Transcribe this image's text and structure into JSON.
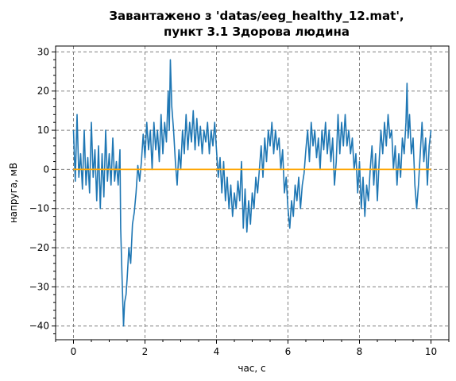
{
  "chart_data": {
    "type": "line",
    "title": [
      "Завантажено з 'datas/eeg_healthy_12.mat',",
      "пункт 3.1 Здорова людина"
    ],
    "xlabel": "час, с",
    "ylabel": "напруга, мВ",
    "xlim": [
      -0.5,
      10.5
    ],
    "ylim": [
      -43.5,
      31.5
    ],
    "xticks": [
      0,
      2,
      4,
      6,
      8,
      10
    ],
    "yticks": [
      30,
      20,
      10,
      0,
      -10,
      -20,
      -30,
      -40
    ],
    "xtick_labels": [
      "0",
      "2",
      "4",
      "6",
      "8",
      "10"
    ],
    "ytick_labels": [
      "30",
      "20",
      "10",
      "0",
      "−10",
      "−20",
      "−30",
      "−40"
    ],
    "grid": true,
    "colors": {
      "signal": "#1f77b4",
      "mean": "#ffa500",
      "grid": "#808080"
    },
    "series": [
      {
        "values": [
          [
            0.0,
            10
          ],
          [
            0.05,
            -3
          ],
          [
            0.1,
            14
          ],
          [
            0.15,
            -2
          ],
          [
            0.2,
            4
          ],
          [
            0.25,
            -5
          ],
          [
            0.3,
            10
          ],
          [
            0.35,
            -4
          ],
          [
            0.4,
            3
          ],
          [
            0.45,
            -6
          ],
          [
            0.5,
            12
          ],
          [
            0.55,
            -2
          ],
          [
            0.6,
            5
          ],
          [
            0.65,
            -8
          ],
          [
            0.7,
            6
          ],
          [
            0.75,
            -10
          ],
          [
            0.8,
            4
          ],
          [
            0.85,
            -7
          ],
          [
            0.9,
            10
          ],
          [
            0.95,
            -3
          ],
          [
            1.0,
            4
          ],
          [
            1.05,
            -4
          ],
          [
            1.1,
            8
          ],
          [
            1.15,
            -3
          ],
          [
            1.2,
            2
          ],
          [
            1.25,
            -4
          ],
          [
            1.3,
            5
          ],
          [
            1.32,
            -15
          ],
          [
            1.36,
            -28
          ],
          [
            1.4,
            -40
          ],
          [
            1.43,
            -34
          ],
          [
            1.47,
            -32
          ],
          [
            1.5,
            -28
          ],
          [
            1.55,
            -20
          ],
          [
            1.6,
            -24
          ],
          [
            1.65,
            -14
          ],
          [
            1.7,
            -11
          ],
          [
            1.75,
            -6
          ],
          [
            1.8,
            1
          ],
          [
            1.85,
            -3
          ],
          [
            1.9,
            2
          ],
          [
            1.95,
            9
          ],
          [
            2.0,
            3
          ],
          [
            2.05,
            12
          ],
          [
            2.1,
            5
          ],
          [
            2.15,
            10
          ],
          [
            2.2,
            0
          ],
          [
            2.25,
            12
          ],
          [
            2.3,
            5
          ],
          [
            2.35,
            10
          ],
          [
            2.4,
            2
          ],
          [
            2.45,
            14
          ],
          [
            2.5,
            4
          ],
          [
            2.55,
            12
          ],
          [
            2.6,
            7
          ],
          [
            2.65,
            20
          ],
          [
            2.68,
            10
          ],
          [
            2.71,
            28
          ],
          [
            2.75,
            16
          ],
          [
            2.8,
            10
          ],
          [
            2.85,
            2
          ],
          [
            2.9,
            -4
          ],
          [
            2.95,
            5
          ],
          [
            3.0,
            0
          ],
          [
            3.05,
            10
          ],
          [
            3.1,
            4
          ],
          [
            3.15,
            14
          ],
          [
            3.2,
            5
          ],
          [
            3.25,
            12
          ],
          [
            3.3,
            7
          ],
          [
            3.35,
            15
          ],
          [
            3.4,
            5
          ],
          [
            3.45,
            13
          ],
          [
            3.5,
            6
          ],
          [
            3.55,
            11
          ],
          [
            3.6,
            4
          ],
          [
            3.65,
            10
          ],
          [
            3.7,
            7
          ],
          [
            3.75,
            12
          ],
          [
            3.8,
            4
          ],
          [
            3.85,
            10
          ],
          [
            3.9,
            6
          ],
          [
            3.95,
            12
          ],
          [
            4.0,
            5
          ],
          [
            4.05,
            -2
          ],
          [
            4.1,
            3
          ],
          [
            4.15,
            -6
          ],
          [
            4.2,
            2
          ],
          [
            4.25,
            -8
          ],
          [
            4.3,
            -2
          ],
          [
            4.35,
            -10
          ],
          [
            4.4,
            -4
          ],
          [
            4.45,
            -12
          ],
          [
            4.5,
            -6
          ],
          [
            4.55,
            -10
          ],
          [
            4.6,
            -3
          ],
          [
            4.65,
            -8
          ],
          [
            4.7,
            2
          ],
          [
            4.75,
            -15
          ],
          [
            4.8,
            -5
          ],
          [
            4.85,
            -16
          ],
          [
            4.9,
            -8
          ],
          [
            4.95,
            -14
          ],
          [
            5.0,
            -6
          ],
          [
            5.05,
            -10
          ],
          [
            5.1,
            -2
          ],
          [
            5.15,
            -6
          ],
          [
            5.2,
            0
          ],
          [
            5.25,
            6
          ],
          [
            5.3,
            -2
          ],
          [
            5.35,
            8
          ],
          [
            5.4,
            2
          ],
          [
            5.45,
            10
          ],
          [
            5.5,
            6
          ],
          [
            5.55,
            12
          ],
          [
            5.6,
            4
          ],
          [
            5.65,
            10
          ],
          [
            5.7,
            5
          ],
          [
            5.75,
            8
          ],
          [
            5.8,
            0
          ],
          [
            5.85,
            5
          ],
          [
            5.9,
            -6
          ],
          [
            5.95,
            -2
          ],
          [
            6.0,
            -10
          ],
          [
            6.05,
            -15
          ],
          [
            6.1,
            -8
          ],
          [
            6.15,
            -12
          ],
          [
            6.2,
            -4
          ],
          [
            6.25,
            -8
          ],
          [
            6.3,
            -2
          ],
          [
            6.35,
            -10
          ],
          [
            6.4,
            -4
          ],
          [
            6.45,
            -1
          ],
          [
            6.5,
            5
          ],
          [
            6.55,
            10
          ],
          [
            6.6,
            2
          ],
          [
            6.65,
            12
          ],
          [
            6.7,
            6
          ],
          [
            6.75,
            10
          ],
          [
            6.8,
            3
          ],
          [
            6.85,
            8
          ],
          [
            6.9,
            0
          ],
          [
            6.95,
            10
          ],
          [
            7.0,
            5
          ],
          [
            7.05,
            12
          ],
          [
            7.1,
            4
          ],
          [
            7.15,
            10
          ],
          [
            7.2,
            2
          ],
          [
            7.25,
            8
          ],
          [
            7.3,
            -4
          ],
          [
            7.35,
            2
          ],
          [
            7.4,
            14
          ],
          [
            7.45,
            4
          ],
          [
            7.5,
            12
          ],
          [
            7.55,
            6
          ],
          [
            7.6,
            14
          ],
          [
            7.65,
            6
          ],
          [
            7.7,
            10
          ],
          [
            7.75,
            4
          ],
          [
            7.8,
            8
          ],
          [
            7.85,
            0
          ],
          [
            7.9,
            4
          ],
          [
            7.95,
            -6
          ],
          [
            8.0,
            2
          ],
          [
            8.05,
            -10
          ],
          [
            8.1,
            -2
          ],
          [
            8.15,
            -12
          ],
          [
            8.2,
            -4
          ],
          [
            8.25,
            -8
          ],
          [
            8.3,
            0
          ],
          [
            8.35,
            6
          ],
          [
            8.4,
            -4
          ],
          [
            8.45,
            4
          ],
          [
            8.5,
            -8
          ],
          [
            8.55,
            2
          ],
          [
            8.6,
            10
          ],
          [
            8.65,
            4
          ],
          [
            8.7,
            12
          ],
          [
            8.75,
            6
          ],
          [
            8.8,
            14
          ],
          [
            8.85,
            8
          ],
          [
            8.9,
            10
          ],
          [
            8.95,
            0
          ],
          [
            9.0,
            6
          ],
          [
            9.05,
            -4
          ],
          [
            9.1,
            4
          ],
          [
            9.15,
            -2
          ],
          [
            9.2,
            8
          ],
          [
            9.25,
            4
          ],
          [
            9.3,
            12
          ],
          [
            9.33,
            22
          ],
          [
            9.36,
            8
          ],
          [
            9.4,
            14
          ],
          [
            9.45,
            4
          ],
          [
            9.5,
            8
          ],
          [
            9.55,
            -4
          ],
          [
            9.6,
            -10
          ],
          [
            9.65,
            -4
          ],
          [
            9.7,
            4
          ],
          [
            9.75,
            12
          ],
          [
            9.8,
            2
          ],
          [
            9.85,
            8
          ],
          [
            9.9,
            -4
          ],
          [
            9.95,
            6
          ],
          [
            10.0,
            10
          ]
        ]
      },
      {
        "values": [
          [
            0.0,
            0
          ],
          [
            10.0,
            0
          ]
        ]
      }
    ]
  }
}
